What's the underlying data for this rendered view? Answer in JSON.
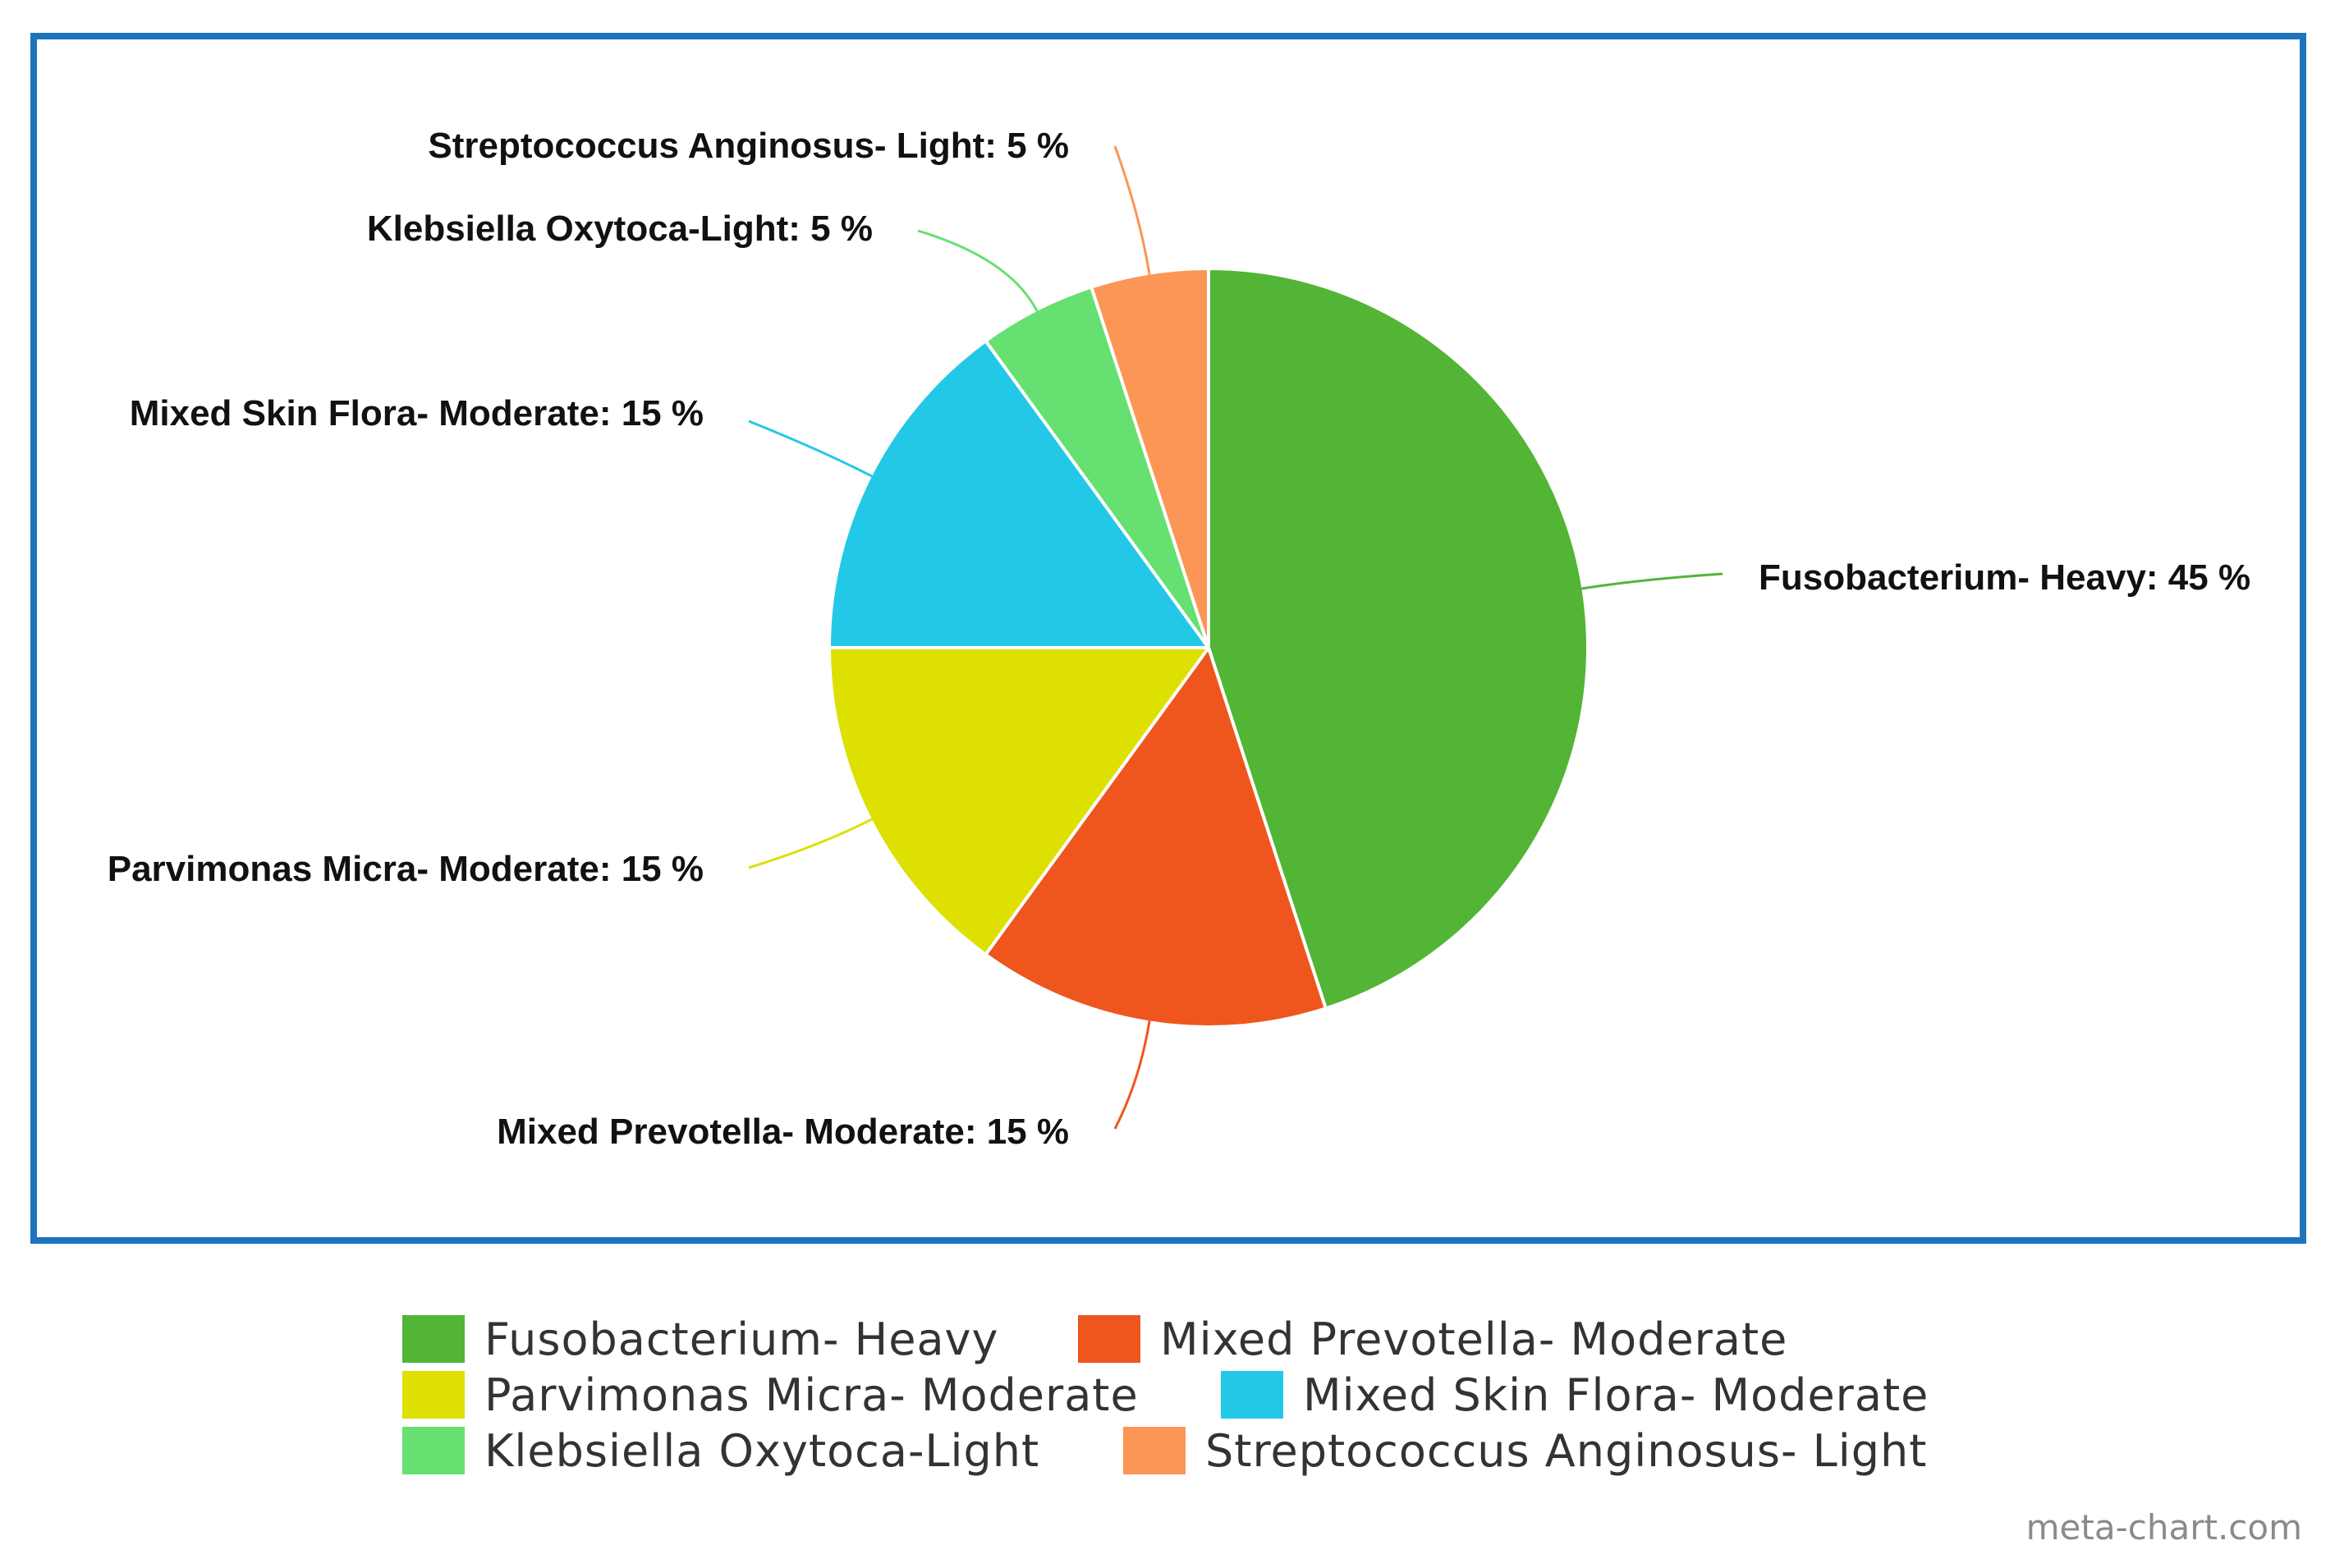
{
  "chart_data": {
    "type": "pie",
    "slices": [
      {
        "label": "Fusobacterium- Heavy",
        "value": 45,
        "color": "#52b535",
        "data_label": "Fusobacterium- Heavy: 45 %"
      },
      {
        "label": "Mixed Prevotella- Moderate",
        "value": 15,
        "color": "#ee561e",
        "data_label": "Mixed Prevotella- Moderate: 15 %"
      },
      {
        "label": "Parvimonas Micra- Moderate",
        "value": 15,
        "color": "#dde000",
        "data_label": "Parvimonas Micra- Moderate: 15 %"
      },
      {
        "label": "Mixed Skin Flora- Moderate",
        "value": 15,
        "color": "#23c8e6",
        "data_label": "Mixed Skin Flora- Moderate: 15 %"
      },
      {
        "label": "Klebsiella Oxytoca-Light",
        "value": 5,
        "color": "#66e070",
        "data_label": "Klebsiella Oxytoca-Light: 5 %"
      },
      {
        "label": "Streptococcus Anginosus- Light",
        "value": 5,
        "color": "#fb9656",
        "data_label": "Streptococcus Anginosus- Light: 5 %"
      }
    ],
    "start_angle": "12 o'clock",
    "direction": "clockwise",
    "legend_position": "bottom",
    "frame_color": "#1b74bd"
  },
  "legend": {
    "items": [
      "Fusobacterium- Heavy",
      "Mixed Prevotella- Moderate",
      "Parvimonas Micra- Moderate",
      "Mixed Skin Flora- Moderate",
      "Klebsiella Oxytoca-Light",
      "Streptococcus Anginosus- Light"
    ]
  },
  "watermark": "meta-chart.com"
}
